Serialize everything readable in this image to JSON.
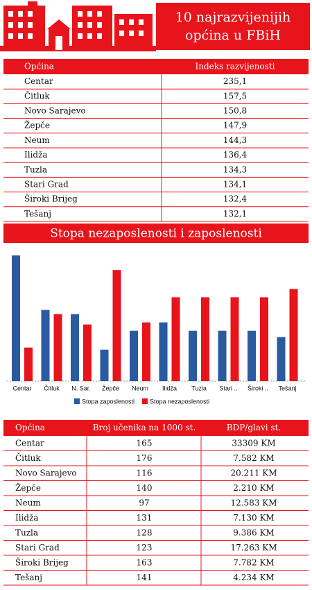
{
  "header": {
    "title_lines": [
      "10 najrazvijenijih",
      "općina u FBiH"
    ]
  },
  "table1": {
    "columns": [
      "Općina",
      "Indeks razvijenosti"
    ],
    "rows": [
      [
        "Centar",
        "235,1"
      ],
      [
        "Čitluk",
        "157,5"
      ],
      [
        "Novo Sarajevo",
        "150,8"
      ],
      [
        "Žepče",
        "147,9"
      ],
      [
        "Neum",
        "144,3"
      ],
      [
        "Ilidža",
        "136,4"
      ],
      [
        "Tuzla",
        "134,3"
      ],
      [
        "Stari Grad",
        "134,1"
      ],
      [
        "Široki Brijeg",
        "132,4"
      ],
      [
        "Tešanj",
        "132,1"
      ]
    ]
  },
  "chart_data": {
    "type": "bar",
    "title": "Stopa nezaposlenosti i zaposlenosti",
    "categories": [
      "Centar",
      "Čitluk",
      "N. Sar.",
      "Žepče",
      "Neum",
      "Ilidža",
      "Tuzla",
      "Stari ..",
      "Široki ..",
      "Tešanj"
    ],
    "series": [
      {
        "name": "Stopa zaposlenosti",
        "color": "#2a5aa0",
        "values": [
          60,
          34,
          32,
          15,
          24,
          28,
          24,
          24,
          24,
          21
        ]
      },
      {
        "name": "Stopa nezaposlenosti",
        "color": "#e8141c",
        "values": [
          16,
          32,
          27,
          53,
          28,
          40,
          40,
          40,
          40,
          44
        ]
      }
    ],
    "legend": "bottom"
  },
  "table2": {
    "columns": [
      "Općina",
      "Broj učenika na 1000 st.",
      "BDP/glavi st."
    ],
    "rows": [
      [
        "Centar",
        "165",
        "33309 KM"
      ],
      [
        "Čitluk",
        "176",
        "7.582 KM"
      ],
      [
        "Novo Sarajevo",
        "116",
        "20.211 KM"
      ],
      [
        "Žepče",
        "140",
        "2.210 KM"
      ],
      [
        "Neum",
        "97",
        "12.583 KM"
      ],
      [
        "Ilidža",
        "131",
        "7.130 KM"
      ],
      [
        "Tuzla",
        "128",
        "9.386 KM"
      ],
      [
        "Stari Grad",
        "123",
        "17.263 KM"
      ],
      [
        "Široki Brijeg",
        "163",
        "7.782 KM"
      ],
      [
        "Tešanj",
        "141",
        "4.234 KM"
      ]
    ]
  }
}
